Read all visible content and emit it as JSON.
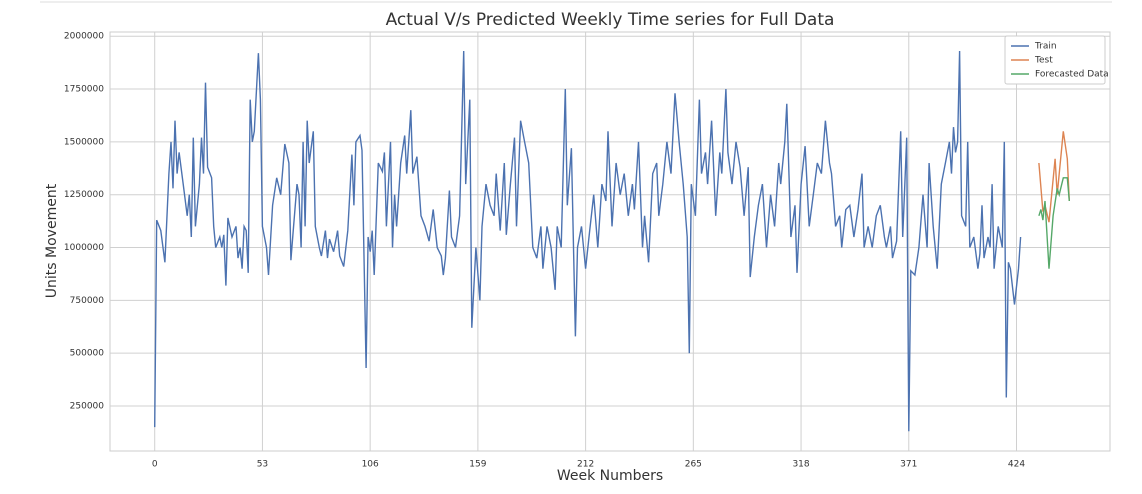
{
  "chart_data": {
    "type": "line",
    "title": "Actual V/s Predicted Weekly Time series for Full Data",
    "xlabel": "Week Numbers",
    "ylabel": "Units Movement",
    "xlim": [
      -22,
      470
    ],
    "ylim": [
      37000,
      2020000
    ],
    "xticks": [
      0,
      53,
      106,
      159,
      212,
      265,
      318,
      371,
      424
    ],
    "yticks": [
      250000,
      500000,
      750000,
      1000000,
      1250000,
      1500000,
      1750000,
      2000000
    ],
    "grid": true,
    "legend": "upper right",
    "series": [
      {
        "name": "Train",
        "color": "#4c72b0",
        "x": [
          0,
          1,
          3,
          5,
          7,
          8,
          9,
          10,
          11,
          12,
          14,
          16,
          17,
          18,
          19,
          20,
          22,
          23,
          24,
          25,
          26,
          28,
          29,
          30,
          32,
          33,
          34,
          35,
          36,
          38,
          40,
          41,
          42,
          43,
          44,
          45,
          46,
          47,
          48,
          49,
          51,
          52,
          53,
          55,
          56,
          58,
          60,
          62,
          64,
          66,
          67,
          68,
          70,
          71,
          72,
          73,
          74,
          75,
          76,
          78,
          79,
          81,
          82,
          84,
          85,
          86,
          88,
          90,
          91,
          93,
          95,
          97,
          98,
          99,
          101,
          102,
          104,
          105,
          106,
          107,
          108,
          110,
          112,
          113,
          114,
          116,
          117,
          118,
          119,
          121,
          123,
          124,
          126,
          127,
          129,
          131,
          133,
          135,
          137,
          139,
          141,
          142,
          143,
          145,
          146,
          148,
          150,
          152,
          153,
          155,
          156,
          158,
          160,
          161,
          163,
          165,
          167,
          168,
          170,
          172,
          173,
          175,
          177,
          178,
          180,
          182,
          184,
          186,
          188,
          190,
          191,
          193,
          195,
          197,
          198,
          200,
          202,
          203,
          205,
          207,
          208,
          210,
          212,
          214,
          216,
          218,
          220,
          222,
          223,
          225,
          227,
          229,
          231,
          233,
          235,
          236,
          238,
          240,
          241,
          243,
          245,
          247,
          248,
          250,
          252,
          254,
          256,
          258,
          260,
          262,
          263,
          264,
          266,
          268,
          269,
          271,
          272,
          274,
          276,
          278,
          279,
          281,
          282,
          284,
          286,
          288,
          290,
          292,
          293,
          295,
          297,
          299,
          301,
          303,
          305,
          307,
          308,
          310,
          311,
          313,
          315,
          316,
          318,
          320,
          322,
          324,
          326,
          328,
          330,
          332,
          333,
          335,
          337,
          338,
          340,
          342,
          344,
          346,
          348,
          349,
          351,
          353,
          355,
          357,
          359,
          360,
          362,
          363,
          365,
          367,
          368,
          370,
          371,
          372,
          374,
          376,
          378,
          380,
          381,
          383,
          385,
          387,
          389,
          391,
          392,
          393,
          394,
          395,
          396,
          397,
          399,
          400,
          401,
          403,
          405,
          406,
          407,
          408,
          410,
          411,
          412,
          413,
          415,
          417,
          418,
          419,
          420,
          421,
          423,
          425,
          426
        ],
        "values": [
          150000,
          1130000,
          1080000,
          930000,
          1350000,
          1500000,
          1280000,
          1600000,
          1350000,
          1450000,
          1300000,
          1150000,
          1250000,
          1050000,
          1520000,
          1100000,
          1300000,
          1520000,
          1350000,
          1780000,
          1380000,
          1330000,
          1100000,
          1000000,
          1050000,
          1000000,
          1060000,
          820000,
          1140000,
          1050000,
          1100000,
          950000,
          1000000,
          900000,
          1100000,
          1080000,
          880000,
          1700000,
          1500000,
          1550000,
          1920000,
          1700000,
          1100000,
          1000000,
          870000,
          1200000,
          1330000,
          1250000,
          1490000,
          1400000,
          940000,
          1060000,
          1300000,
          1250000,
          1000000,
          1500000,
          1100000,
          1600000,
          1400000,
          1550000,
          1100000,
          1000000,
          960000,
          1080000,
          950000,
          1040000,
          980000,
          1080000,
          960000,
          910000,
          1080000,
          1440000,
          1200000,
          1500000,
          1530000,
          1460000,
          430000,
          1050000,
          980000,
          1080000,
          870000,
          1400000,
          1360000,
          1450000,
          1100000,
          1500000,
          1000000,
          1250000,
          1100000,
          1400000,
          1530000,
          1350000,
          1650000,
          1350000,
          1430000,
          1150000,
          1100000,
          1030000,
          1180000,
          1000000,
          960000,
          870000,
          950000,
          1270000,
          1050000,
          1000000,
          1150000,
          1930000,
          1300000,
          1700000,
          620000,
          1000000,
          750000,
          1100000,
          1300000,
          1200000,
          1150000,
          1350000,
          1080000,
          1400000,
          1060000,
          1300000,
          1520000,
          1100000,
          1600000,
          1500000,
          1400000,
          1000000,
          950000,
          1100000,
          900000,
          1100000,
          1000000,
          800000,
          1100000,
          1000000,
          1750000,
          1200000,
          1470000,
          580000,
          1000000,
          1100000,
          900000,
          1080000,
          1250000,
          1000000,
          1300000,
          1220000,
          1550000,
          1100000,
          1400000,
          1250000,
          1350000,
          1150000,
          1300000,
          1180000,
          1500000,
          1000000,
          1150000,
          930000,
          1350000,
          1400000,
          1150000,
          1300000,
          1500000,
          1350000,
          1730000,
          1500000,
          1300000,
          1050000,
          500000,
          1300000,
          1150000,
          1700000,
          1350000,
          1450000,
          1300000,
          1600000,
          1150000,
          1450000,
          1350000,
          1750000,
          1450000,
          1300000,
          1500000,
          1380000,
          1150000,
          1380000,
          860000,
          1050000,
          1200000,
          1300000,
          1000000,
          1250000,
          1100000,
          1400000,
          1300000,
          1500000,
          1680000,
          1050000,
          1200000,
          880000,
          1300000,
          1480000,
          1100000,
          1250000,
          1400000,
          1350000,
          1600000,
          1400000,
          1350000,
          1100000,
          1150000,
          1000000,
          1180000,
          1200000,
          1050000,
          1180000,
          1350000,
          1000000,
          1100000,
          1000000,
          1150000,
          1200000,
          1050000,
          1000000,
          1100000,
          950000,
          1030000,
          1550000,
          1050000,
          1520000,
          130000,
          890000,
          870000,
          1000000,
          1250000,
          1000000,
          1400000,
          1100000,
          900000,
          1300000,
          1400000,
          1500000,
          1350000,
          1570000,
          1450000,
          1500000,
          1930000,
          1150000,
          1100000,
          1500000,
          1000000,
          1050000,
          900000,
          970000,
          1200000,
          950000,
          1050000,
          1000000,
          1300000,
          900000,
          1100000,
          1000000,
          1500000,
          290000,
          930000,
          900000,
          730000,
          900000,
          1050000
        ]
      },
      {
        "name": "Test",
        "color": "#dd8452",
        "x": [
          435,
          437,
          438,
          440,
          443,
          444,
          447,
          449,
          450
        ],
        "values": [
          1400000,
          1170000,
          1200000,
          1120000,
          1420000,
          1250000,
          1550000,
          1420000,
          1220000
        ]
      },
      {
        "name": "Forecasted Data",
        "color": "#55a868",
        "x": [
          435,
          436,
          437,
          438,
          440,
          442,
          444,
          445,
          447,
          449,
          450
        ],
        "values": [
          1150000,
          1180000,
          1130000,
          1220000,
          900000,
          1150000,
          1280000,
          1250000,
          1330000,
          1330000,
          1220000
        ]
      }
    ]
  }
}
